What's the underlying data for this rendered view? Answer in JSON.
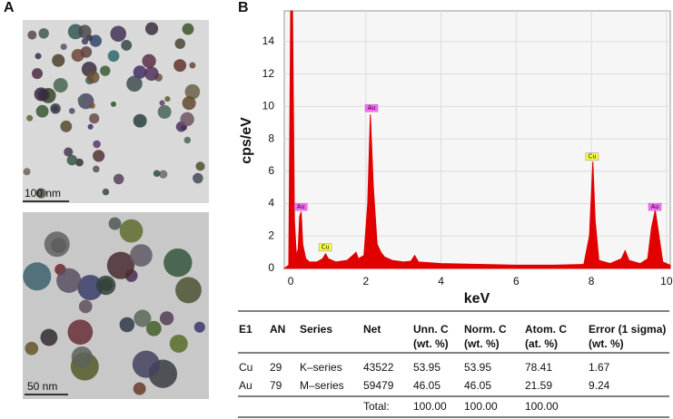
{
  "panel_a": {
    "label": "A",
    "scale_bars": [
      "100 nm",
      "50 nm"
    ]
  },
  "chart_data": {
    "type": "area",
    "panel_label": "B",
    "x_label": "keV",
    "y_label": "cps/eV",
    "x": [
      -0.17,
      -0.05,
      0.0,
      0.05,
      0.1,
      0.15,
      0.2,
      0.24,
      0.28,
      0.32,
      0.4,
      0.5,
      0.7,
      0.85,
      0.93,
      1.0,
      1.2,
      1.5,
      1.65,
      1.74,
      1.8,
      1.95,
      2.05,
      2.12,
      2.2,
      2.3,
      2.4,
      2.5,
      2.7,
      3.0,
      3.2,
      3.3,
      3.4,
      4.0,
      5.0,
      6.0,
      7.0,
      7.8,
      7.95,
      8.04,
      8.1,
      8.2,
      8.5,
      8.8,
      8.9,
      9.0,
      9.3,
      9.5,
      9.6,
      9.7,
      9.8,
      9.9,
      10.1
    ],
    "values": [
      0,
      0.2,
      15.9,
      15.9,
      3,
      0.8,
      1.2,
      3.2,
      3.5,
      1.5,
      0.6,
      0.4,
      0.4,
      0.6,
      0.9,
      0.6,
      0.4,
      0.5,
      0.8,
      1.0,
      0.6,
      0.8,
      4,
      9.5,
      5,
      1.5,
      1.0,
      0.7,
      0.5,
      0.4,
      0.45,
      0.8,
      0.4,
      0.3,
      0.25,
      0.2,
      0.2,
      0.25,
      2,
      6.6,
      3,
      0.5,
      0.3,
      0.6,
      1.1,
      0.5,
      0.3,
      0.6,
      2.5,
      3.6,
      2,
      0.4,
      0.2
    ],
    "color": "#e00000",
    "xlim": [
      -0.17,
      10.1
    ],
    "ylim": [
      0,
      15.9
    ],
    "xticks": [
      0,
      2,
      4,
      6,
      8,
      10
    ],
    "yticks": [
      0,
      2,
      4,
      6,
      8,
      10,
      12,
      14
    ],
    "grid": true,
    "annotations": [
      {
        "text": "Au",
        "x": 0.27,
        "y": 3.8,
        "color": "#ff66ff"
      },
      {
        "text": "Cu",
        "x": 0.92,
        "y": 1.3,
        "color": "#ffff44"
      },
      {
        "text": "Au",
        "x": 2.15,
        "y": 9.9,
        "color": "#ff66ff"
      },
      {
        "text": "Cu",
        "x": 8.02,
        "y": 6.9,
        "color": "#ffff44"
      },
      {
        "text": "Au",
        "x": 9.69,
        "y": 3.8,
        "color": "#ff66ff"
      }
    ]
  },
  "table": {
    "header": [
      [
        "E1"
      ],
      [
        "AN"
      ],
      [
        "Series"
      ],
      [
        "Net"
      ],
      [
        "Unn. C",
        "(wt. %)"
      ],
      [
        "Norm. C",
        "(wt. %)"
      ],
      [
        "Atom. C",
        "(at. %)"
      ],
      [
        "Error (1 sigma)",
        "(wt. %)"
      ]
    ],
    "rows": [
      [
        "Cu",
        "29",
        "K–series",
        "43522",
        "53.95",
        "53.95",
        "78.41",
        "1.67"
      ],
      [
        "Au",
        "79",
        "M–series",
        "59479",
        "46.05",
        "46.05",
        "21.59",
        "9.24"
      ]
    ],
    "total": {
      "label": "Total:",
      "values": [
        "100.00",
        "100.00",
        "100.00"
      ]
    }
  }
}
